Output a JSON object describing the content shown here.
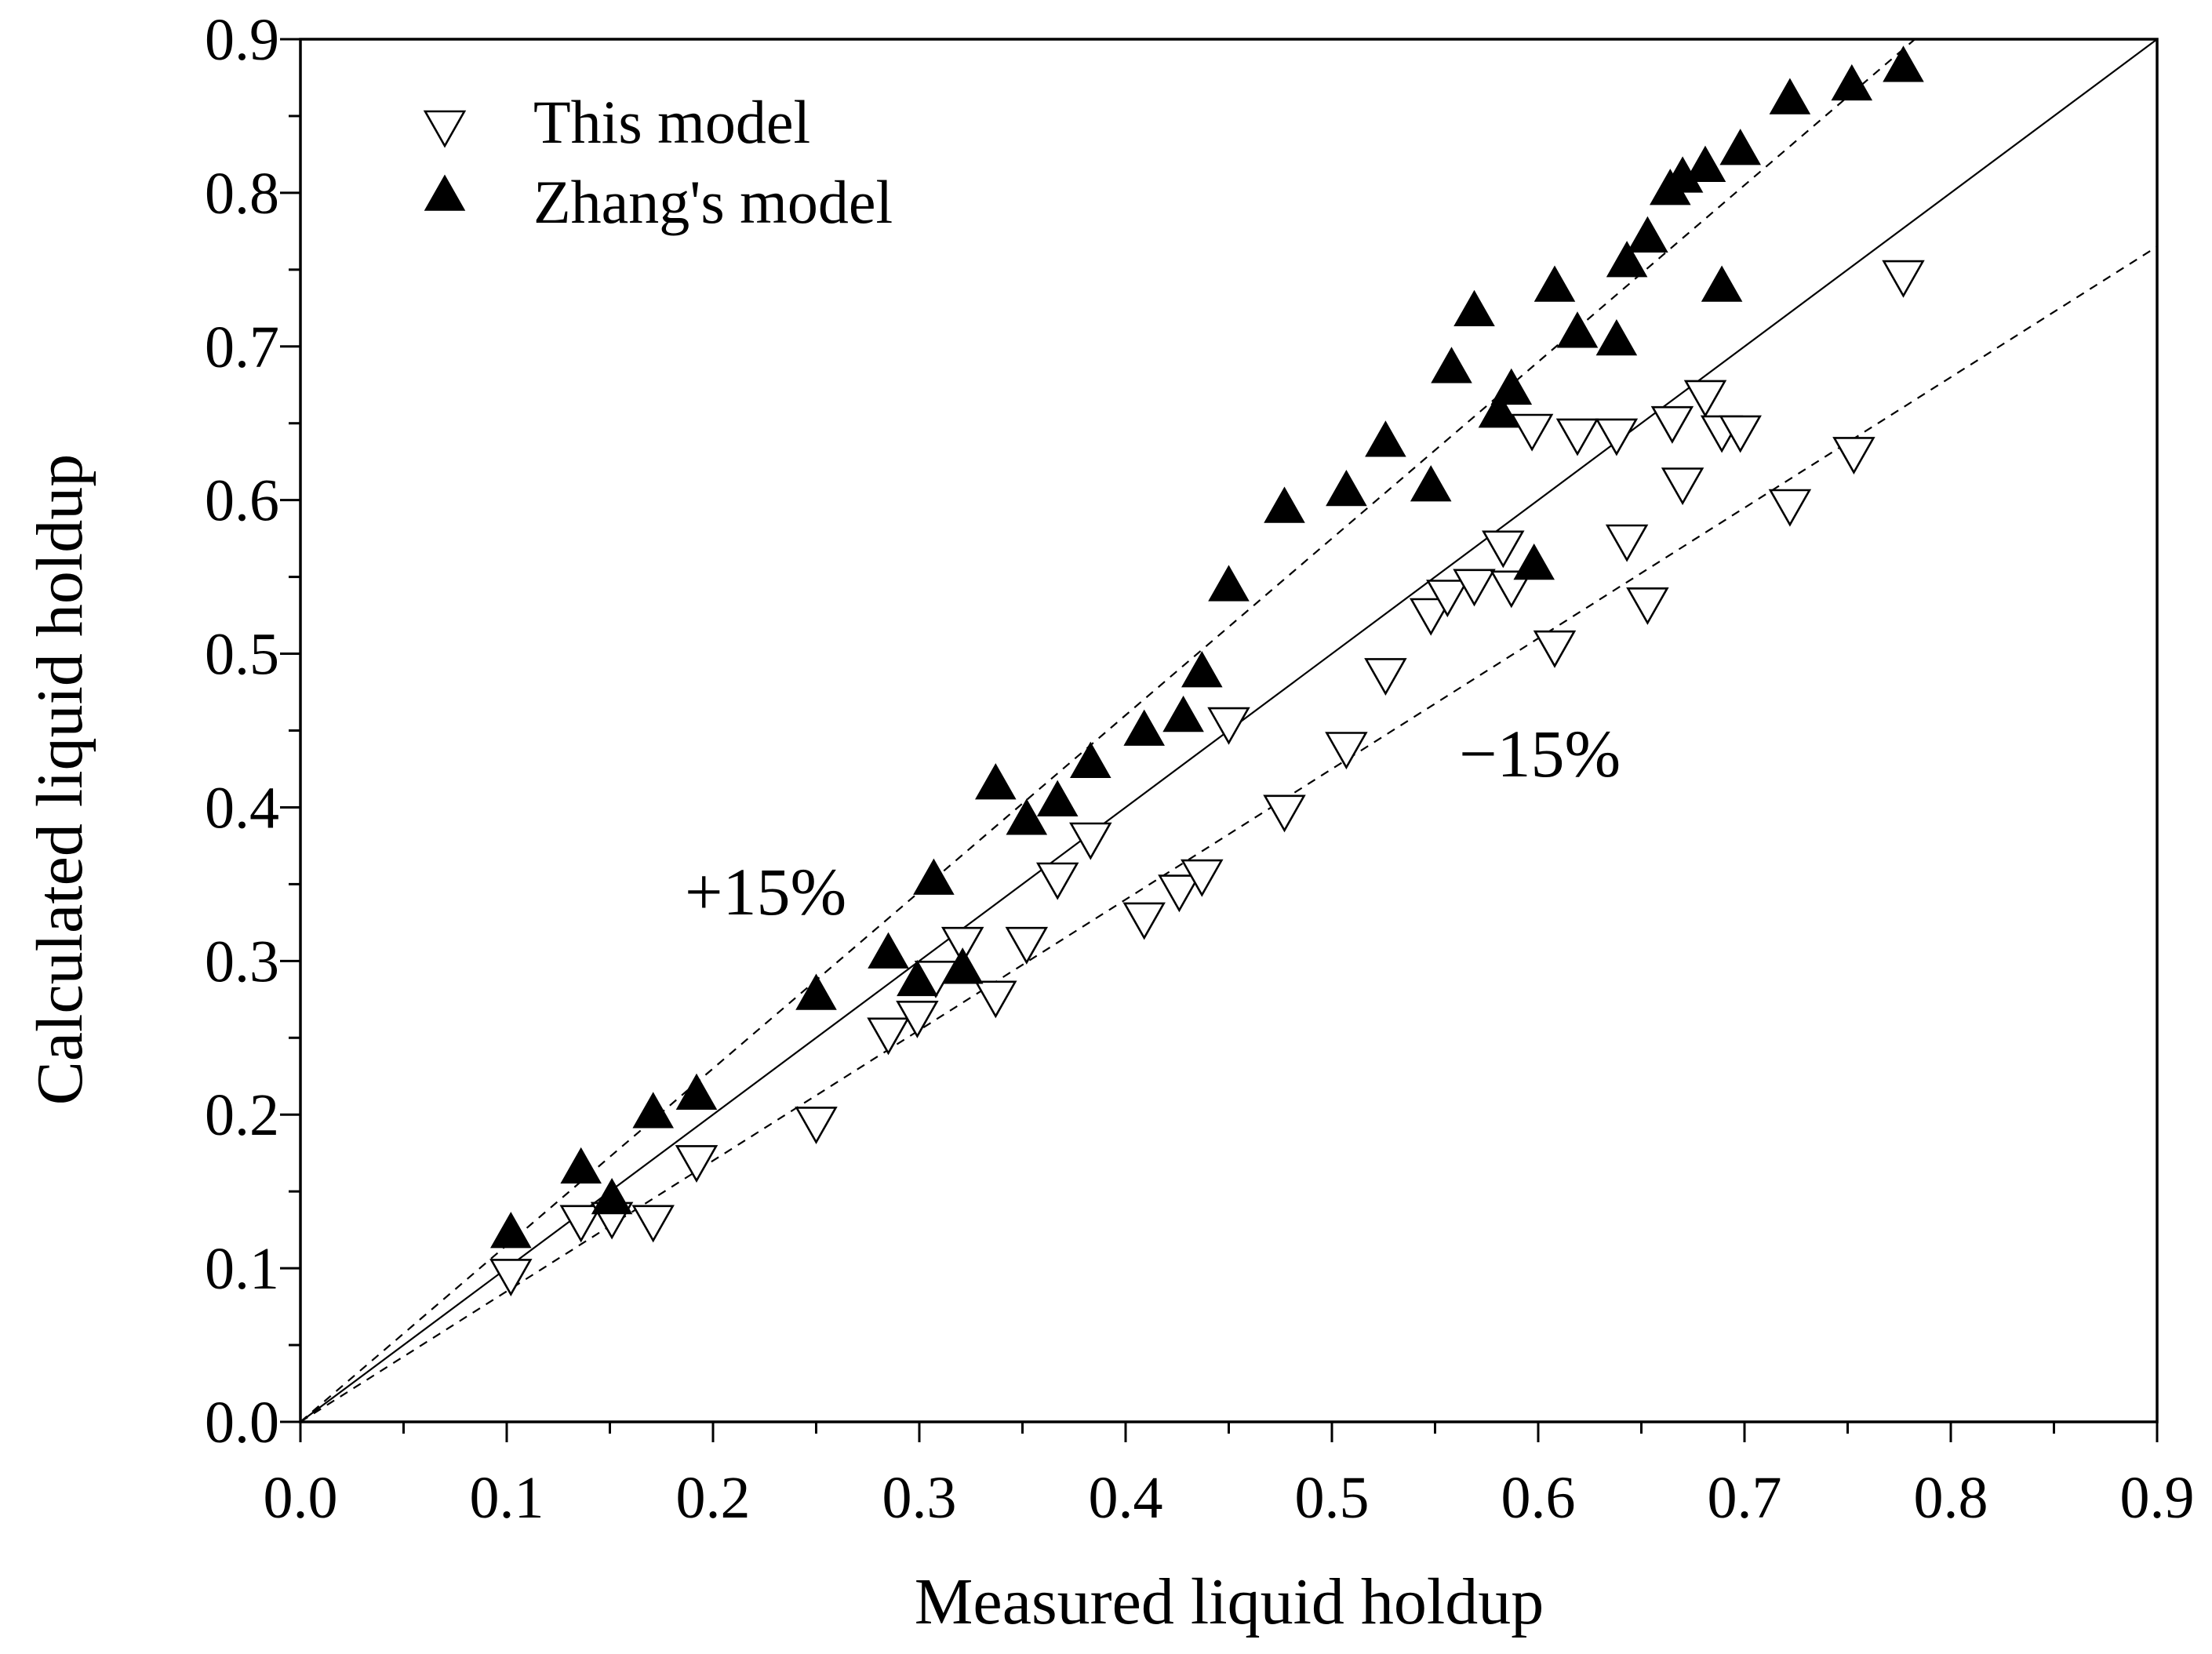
{
  "chart_data": {
    "type": "scatter",
    "title": "",
    "xlabel": "Measured liquid holdup",
    "ylabel": "Calculated liquid holdup",
    "xlim": [
      0,
      0.9
    ],
    "ylim": [
      0,
      0.9
    ],
    "xticks": [
      "0.0",
      "0.1",
      "0.2",
      "0.3",
      "0.4",
      "0.5",
      "0.6",
      "0.7",
      "0.8",
      "0.9"
    ],
    "yticks": [
      "0.0",
      "0.1",
      "0.2",
      "0.3",
      "0.4",
      "0.5",
      "0.6",
      "0.7",
      "0.8",
      "0.9"
    ],
    "grid": false,
    "legend": {
      "position": "top-left",
      "entries": [
        {
          "label": "This model",
          "marker": "open-down-triangle"
        },
        {
          "label": "Zhang's model",
          "marker": "filled-up-triangle"
        }
      ]
    },
    "reference_lines": [
      {
        "name": "parity",
        "slope": 1.0,
        "style": "solid",
        "label": ""
      },
      {
        "name": "plus-15-percent",
        "slope": 1.15,
        "style": "dashed",
        "label": "+15%"
      },
      {
        "name": "minus-15-percent",
        "slope": 0.85,
        "style": "dashed",
        "label": "−15%"
      }
    ],
    "series": [
      {
        "name": "This model",
        "marker": "open-down-triangle",
        "points": [
          [
            0.102,
            0.098
          ],
          [
            0.136,
            0.133
          ],
          [
            0.151,
            0.135
          ],
          [
            0.171,
            0.133
          ],
          [
            0.192,
            0.172
          ],
          [
            0.25,
            0.197
          ],
          [
            0.285,
            0.255
          ],
          [
            0.299,
            0.266
          ],
          [
            0.308,
            0.292
          ],
          [
            0.321,
            0.314
          ],
          [
            0.337,
            0.279
          ],
          [
            0.352,
            0.314
          ],
          [
            0.367,
            0.356
          ],
          [
            0.383,
            0.382
          ],
          [
            0.409,
            0.33
          ],
          [
            0.426,
            0.348
          ],
          [
            0.437,
            0.358
          ],
          [
            0.45,
            0.457
          ],
          [
            0.477,
            0.4
          ],
          [
            0.507,
            0.441
          ],
          [
            0.526,
            0.489
          ],
          [
            0.548,
            0.528
          ],
          [
            0.556,
            0.54
          ],
          [
            0.569,
            0.547
          ],
          [
            0.583,
            0.572
          ],
          [
            0.587,
            0.546
          ],
          [
            0.597,
            0.648
          ],
          [
            0.608,
            0.507
          ],
          [
            0.619,
            0.645
          ],
          [
            0.638,
            0.645
          ],
          [
            0.643,
            0.576
          ],
          [
            0.653,
            0.535
          ],
          [
            0.665,
            0.653
          ],
          [
            0.67,
            0.613
          ],
          [
            0.681,
            0.67
          ],
          [
            0.689,
            0.647
          ],
          [
            0.698,
            0.647
          ],
          [
            0.722,
            0.599
          ],
          [
            0.753,
            0.633
          ],
          [
            0.777,
            0.748
          ]
        ]
      },
      {
        "name": "Zhang's model",
        "marker": "filled-up-triangle",
        "points": [
          [
            0.102,
            0.121
          ],
          [
            0.136,
            0.163
          ],
          [
            0.151,
            0.143
          ],
          [
            0.171,
            0.199
          ],
          [
            0.192,
            0.211
          ],
          [
            0.25,
            0.276
          ],
          [
            0.285,
            0.303
          ],
          [
            0.299,
            0.285
          ],
          [
            0.307,
            0.351
          ],
          [
            0.321,
            0.293
          ],
          [
            0.337,
            0.413
          ],
          [
            0.352,
            0.39
          ],
          [
            0.367,
            0.402
          ],
          [
            0.383,
            0.427
          ],
          [
            0.409,
            0.448
          ],
          [
            0.428,
            0.457
          ],
          [
            0.437,
            0.486
          ],
          [
            0.45,
            0.542
          ],
          [
            0.477,
            0.593
          ],
          [
            0.507,
            0.604
          ],
          [
            0.526,
            0.636
          ],
          [
            0.548,
            0.607
          ],
          [
            0.558,
            0.684
          ],
          [
            0.569,
            0.721
          ],
          [
            0.581,
            0.655
          ],
          [
            0.587,
            0.67
          ],
          [
            0.598,
            0.556
          ],
          [
            0.608,
            0.737
          ],
          [
            0.619,
            0.707
          ],
          [
            0.638,
            0.702
          ],
          [
            0.643,
            0.753
          ],
          [
            0.653,
            0.769
          ],
          [
            0.664,
            0.8
          ],
          [
            0.67,
            0.808
          ],
          [
            0.681,
            0.815
          ],
          [
            0.689,
            0.737
          ],
          [
            0.698,
            0.826
          ],
          [
            0.722,
            0.859
          ],
          [
            0.752,
            0.868
          ],
          [
            0.777,
            0.88
          ]
        ]
      }
    ]
  },
  "colors": {
    "background": "#ffffff",
    "ink": "#000000",
    "open_marker_fill": "#ffffff"
  }
}
